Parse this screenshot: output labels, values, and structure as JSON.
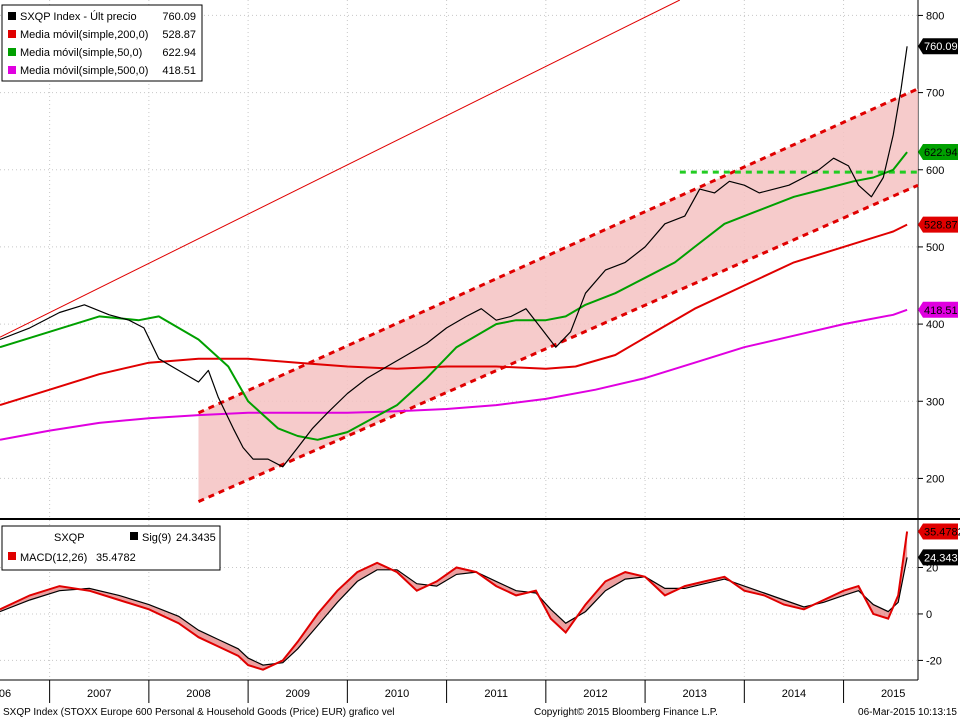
{
  "chart_data": [
    {
      "type": "line",
      "panel": "price",
      "ylim": [
        150,
        820
      ],
      "yticks": [
        200,
        300,
        400,
        500,
        600,
        700,
        800
      ],
      "x_years": [
        "06",
        "2007",
        "2008",
        "2009",
        "2010",
        "2011",
        "2012",
        "2013",
        "2014",
        "2015"
      ],
      "x_range": [
        2006.0,
        2015.25
      ],
      "legend": [
        {
          "label": "SXQP Index - Últ precio",
          "value": "760.09",
          "color": "#000000"
        },
        {
          "label": "Media móvil(simple,200,0)",
          "value": "528.87",
          "color": "#e00000"
        },
        {
          "label": "Media móvil(simple,50,0)",
          "value": "622.94",
          "color": "#00a000"
        },
        {
          "label": "Media móvil(simple,500,0)",
          "value": "418.51",
          "color": "#e000e0"
        }
      ],
      "last_value_tags": [
        {
          "value": "760.09",
          "y": 760.09,
          "color": "#000000",
          "text_color": "#ffffff"
        },
        {
          "value": "622.94",
          "y": 622.94,
          "color": "#00a000",
          "text_color": "#000000"
        },
        {
          "value": "528.87",
          "y": 528.87,
          "color": "#e00000",
          "text_color": "#000000"
        },
        {
          "value": "418.51",
          "y": 418.51,
          "color": "#e000e0",
          "text_color": "#000000"
        }
      ],
      "series": [
        {
          "name": "SXQP Index - Últ precio",
          "color": "#000000",
          "x": [
            2006.0,
            2006.3,
            2006.6,
            2006.85,
            2007.1,
            2007.3,
            2007.45,
            2007.6,
            2007.8,
            2008.0,
            2008.1,
            2008.2,
            2008.35,
            2008.45,
            2008.55,
            2008.7,
            2008.85,
            2009.0,
            2009.15,
            2009.3,
            2009.5,
            2009.7,
            2009.9,
            2010.1,
            2010.3,
            2010.5,
            2010.7,
            2010.85,
            2011.0,
            2011.15,
            2011.3,
            2011.45,
            2011.6,
            2011.75,
            2011.9,
            2012.1,
            2012.3,
            2012.5,
            2012.7,
            2012.9,
            2013.05,
            2013.2,
            2013.35,
            2013.5,
            2013.65,
            2013.8,
            2013.95,
            2014.1,
            2014.25,
            2014.4,
            2014.55,
            2014.65,
            2014.78,
            2014.9,
            2015.0,
            2015.08,
            2015.14
          ],
          "y": [
            380,
            395,
            415,
            425,
            412,
            405,
            395,
            355,
            340,
            325,
            340,
            305,
            265,
            240,
            225,
            225,
            215,
            240,
            265,
            285,
            310,
            330,
            345,
            360,
            375,
            395,
            410,
            420,
            405,
            410,
            420,
            395,
            370,
            390,
            440,
            470,
            480,
            500,
            530,
            540,
            575,
            570,
            585,
            580,
            570,
            575,
            580,
            590,
            600,
            615,
            605,
            580,
            565,
            590,
            645,
            705,
            760
          ]
        },
        {
          "name": "Media móvil(simple,50,0)",
          "color": "#00a000",
          "x": [
            2006.0,
            2006.5,
            2007.0,
            2007.4,
            2007.6,
            2008.0,
            2008.3,
            2008.5,
            2008.8,
            2009.0,
            2009.2,
            2009.5,
            2010.0,
            2010.3,
            2010.6,
            2011.0,
            2011.2,
            2011.5,
            2011.7,
            2011.9,
            2012.2,
            2012.5,
            2012.8,
            2013.0,
            2013.3,
            2013.6,
            2014.0,
            2014.3,
            2014.6,
            2014.8,
            2015.0,
            2015.14
          ],
          "y": [
            370,
            390,
            410,
            405,
            410,
            380,
            345,
            300,
            265,
            255,
            250,
            260,
            295,
            330,
            370,
            400,
            405,
            405,
            410,
            425,
            440,
            460,
            480,
            500,
            530,
            545,
            565,
            575,
            585,
            590,
            600,
            622.94
          ]
        },
        {
          "name": "Media móvil(simple,200,0)",
          "color": "#e00000",
          "x": [
            2006.0,
            2006.5,
            2007.0,
            2007.5,
            2008.0,
            2008.5,
            2009.0,
            2009.5,
            2010.0,
            2010.5,
            2011.0,
            2011.5,
            2011.8,
            2012.2,
            2012.6,
            2013.0,
            2013.5,
            2014.0,
            2014.5,
            2015.0,
            2015.14
          ],
          "y": [
            295,
            315,
            335,
            350,
            355,
            355,
            350,
            345,
            342,
            345,
            345,
            342,
            345,
            360,
            390,
            420,
            450,
            480,
            500,
            520,
            528.87
          ]
        },
        {
          "name": "Media móvil(simple,500,0)",
          "color": "#e000e0",
          "x": [
            2006.0,
            2006.5,
            2007.0,
            2007.5,
            2008.0,
            2008.5,
            2009.0,
            2009.5,
            2010.0,
            2010.5,
            2011.0,
            2011.5,
            2012.0,
            2012.5,
            2013.0,
            2013.5,
            2014.0,
            2014.5,
            2015.0,
            2015.14
          ],
          "y": [
            250,
            262,
            272,
            278,
            282,
            285,
            285,
            285,
            287,
            290,
            295,
            303,
            315,
            330,
            350,
            370,
            385,
            400,
            412,
            418.51
          ]
        }
      ],
      "annotations": [
        {
          "kind": "channel",
          "color": "#f4c2c2",
          "x": [
            2008.0,
            2015.25
          ],
          "lower": [
            170,
            580
          ],
          "upper": [
            285,
            705
          ]
        },
        {
          "kind": "dashed-line",
          "color": "#e00000",
          "x": [
            2008.0,
            2015.25
          ],
          "y": [
            170,
            580
          ]
        },
        {
          "kind": "dashed-line",
          "color": "#e00000",
          "x": [
            2008.0,
            2015.25
          ],
          "y": [
            285,
            705
          ]
        },
        {
          "kind": "line",
          "color": "#e00000",
          "x": [
            2006.0,
            2012.85
          ],
          "y": [
            383,
            820
          ]
        },
        {
          "kind": "dashed-line",
          "color": "#22cc22",
          "x": [
            2012.85,
            2015.25
          ],
          "y": [
            597,
            597
          ]
        }
      ]
    },
    {
      "type": "line",
      "panel": "macd",
      "ylim": [
        -28,
        40
      ],
      "yticks": [
        -20,
        0,
        20
      ],
      "legend": [
        {
          "label": "SXQP",
          "value": "",
          "color": ""
        },
        {
          "label": "Sig(9)",
          "value": "24.3435",
          "color": "#000000"
        },
        {
          "label": "MACD(12,26)",
          "value": "35.4782",
          "color": "#e00000"
        }
      ],
      "last_value_tags": [
        {
          "value": "35.4782",
          "y": 35.4782,
          "color": "#e00000",
          "text_color": "#000000"
        },
        {
          "value": "24.3435",
          "y": 24.3435,
          "color": "#000000",
          "text_color": "#ffffff"
        }
      ],
      "series": [
        {
          "name": "MACD(12,26)",
          "color": "#e00000",
          "x": [
            2006.0,
            2006.3,
            2006.6,
            2006.9,
            2007.2,
            2007.5,
            2007.8,
            2008.0,
            2008.2,
            2008.4,
            2008.5,
            2008.65,
            2008.85,
            2009.0,
            2009.2,
            2009.4,
            2009.6,
            2009.8,
            2010.0,
            2010.2,
            2010.4,
            2010.6,
            2010.8,
            2011.0,
            2011.2,
            2011.4,
            2011.55,
            2011.7,
            2011.9,
            2012.1,
            2012.3,
            2012.5,
            2012.7,
            2012.9,
            2013.1,
            2013.3,
            2013.5,
            2013.7,
            2013.9,
            2014.1,
            2014.3,
            2014.5,
            2014.65,
            2014.8,
            2014.95,
            2015.05,
            2015.14
          ],
          "y": [
            2,
            8,
            12,
            10,
            6,
            2,
            -4,
            -10,
            -14,
            -18,
            -22,
            -24,
            -20,
            -12,
            0,
            10,
            18,
            22,
            18,
            10,
            14,
            20,
            18,
            12,
            8,
            10,
            -2,
            -8,
            4,
            14,
            18,
            16,
            8,
            12,
            14,
            16,
            10,
            8,
            4,
            2,
            6,
            10,
            12,
            0,
            -2,
            8,
            35.4782
          ]
        },
        {
          "name": "Sig(9)",
          "color": "#000000",
          "x": [
            2006.0,
            2006.3,
            2006.6,
            2006.9,
            2007.2,
            2007.5,
            2007.8,
            2008.0,
            2008.2,
            2008.4,
            2008.5,
            2008.65,
            2008.85,
            2009.0,
            2009.2,
            2009.4,
            2009.6,
            2009.8,
            2010.0,
            2010.2,
            2010.4,
            2010.6,
            2010.8,
            2011.0,
            2011.2,
            2011.4,
            2011.55,
            2011.7,
            2011.9,
            2012.1,
            2012.3,
            2012.5,
            2012.7,
            2012.9,
            2013.1,
            2013.3,
            2013.5,
            2013.7,
            2013.9,
            2014.1,
            2014.3,
            2014.5,
            2014.65,
            2014.8,
            2014.95,
            2015.05,
            2015.14
          ],
          "y": [
            1,
            6,
            10,
            11,
            8,
            4,
            -1,
            -7,
            -11,
            -15,
            -19,
            -22,
            -21,
            -15,
            -5,
            5,
            14,
            19,
            19,
            13,
            12,
            17,
            18,
            14,
            10,
            9,
            2,
            -4,
            1,
            10,
            15,
            16,
            11,
            11,
            13,
            15,
            12,
            9,
            6,
            3,
            5,
            8,
            10,
            4,
            1,
            5,
            24.3435
          ]
        }
      ]
    }
  ],
  "footer": {
    "left": "SXQP Index (STOXX Europe 600 Personal & Household Goods (Price) EUR) grafico vel",
    "center": "Copyright© 2015 Bloomberg Finance L.P.",
    "right": "06-Mar-2015 10:13:15"
  }
}
